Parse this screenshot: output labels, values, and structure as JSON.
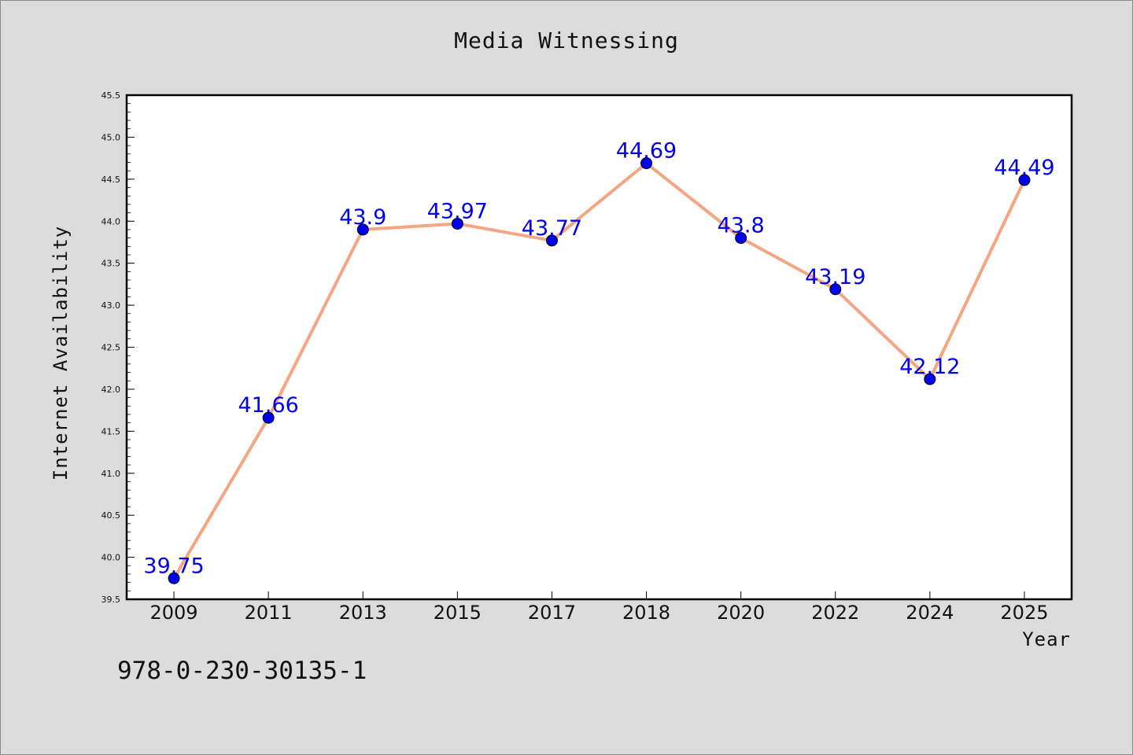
{
  "chart_data": {
    "type": "line",
    "title": "Media Witnessing",
    "xlabel": "Year",
    "ylabel": "Internet Availability",
    "categories": [
      "2009",
      "2011",
      "2013",
      "2015",
      "2017",
      "2018",
      "2020",
      "2022",
      "2024",
      "2025"
    ],
    "series": [
      {
        "values": [
          39.75,
          41.66,
          43.9,
          43.97,
          43.77,
          44.69,
          43.8,
          43.19,
          42.12,
          44.49
        ],
        "data_labels": [
          "39.75",
          "41.66",
          "43.9",
          "43.97",
          "43.77",
          "44.69",
          "43.8",
          "43.19",
          "42.12",
          "44.49"
        ]
      }
    ],
    "ylim": [
      39.5,
      45.5
    ],
    "yticks": [
      "39.5",
      "40.0",
      "40.5",
      "41.0",
      "41.5",
      "42.0",
      "42.5",
      "43.0",
      "43.5",
      "44.0",
      "44.5",
      "45.0",
      "45.5"
    ],
    "grid": false,
    "legend": "none",
    "colors": {
      "line": "#f4a582",
      "marker": "#0000ee",
      "data_label": "#0000ee",
      "plot_background": "#ffffff",
      "figure_background": "#dcdcdc"
    }
  },
  "footnote": "978-0-230-30135-1"
}
